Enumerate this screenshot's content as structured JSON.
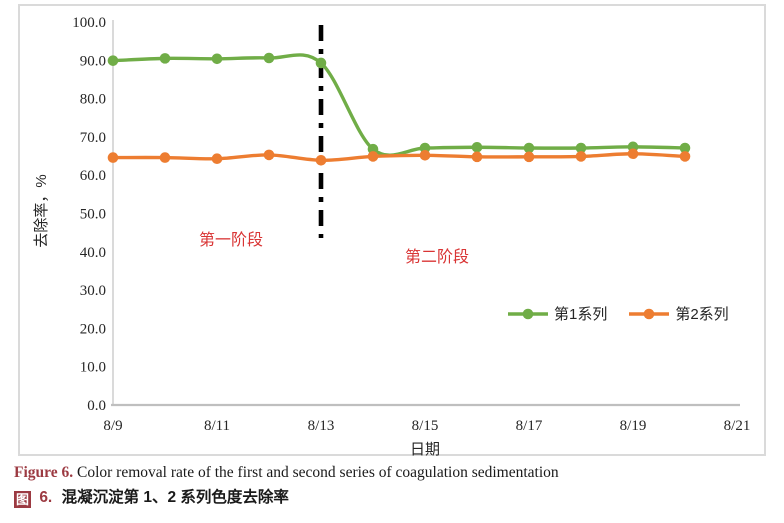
{
  "chart_data": {
    "type": "line",
    "title": "",
    "xlabel": "日期",
    "ylabel": "去除率，%",
    "ylim": [
      0,
      100
    ],
    "y_tick_step": 10,
    "y_tick_labels": [
      "0.0",
      "10.0",
      "20.0",
      "30.0",
      "40.0",
      "50.0",
      "60.0",
      "70.0",
      "80.0",
      "90.0",
      "100.0"
    ],
    "x_tick_labels": [
      "8/9",
      "8/11",
      "8/13",
      "8/15",
      "8/17",
      "8/19",
      "8/21"
    ],
    "categories": [
      "8/9",
      "8/10",
      "8/11",
      "8/12",
      "8/13",
      "8/14",
      "8/15",
      "8/16",
      "8/17",
      "8/18",
      "8/19",
      "8/20"
    ],
    "series": [
      {
        "name": "第1系列",
        "color": "#70AD47",
        "values": [
          89.9,
          90.5,
          90.4,
          90.6,
          89.3,
          66.8,
          67.1,
          67.3,
          67.1,
          67.1,
          67.4,
          67.1
        ]
      },
      {
        "name": "第2系列",
        "color": "#ED7D31",
        "values": [
          64.6,
          64.6,
          64.3,
          65.3,
          63.9,
          64.9,
          65.2,
          64.8,
          64.8,
          64.9,
          65.6,
          64.9
        ]
      }
    ],
    "divider_line": {
      "at_category": "8/13",
      "style": "dash-dot",
      "color": "#000000"
    },
    "annotations": [
      {
        "id": "stage-1",
        "text": "第一阶段",
        "color": "#d93434"
      },
      {
        "id": "stage-2",
        "text": "第二阶段",
        "color": "#d93434"
      }
    ],
    "legend_position": "right-middle",
    "grid": false,
    "smooth_lines": true
  },
  "legend": {
    "items": [
      {
        "label": "第1系列",
        "color": "#70AD47"
      },
      {
        "label": "第2系列",
        "color": "#ED7D31"
      }
    ]
  },
  "caption": {
    "figure_label_en": "Figure 6.",
    "figure_text_en": "Color removal rate of the first and second series of coagulation sedimentation",
    "figure_label_zh_icon": "图",
    "figure_label_zh_num": "6.",
    "figure_text_zh": "混凝沉淀第 1、2 系列色度去除率",
    "label_color": "#9c3a42"
  }
}
